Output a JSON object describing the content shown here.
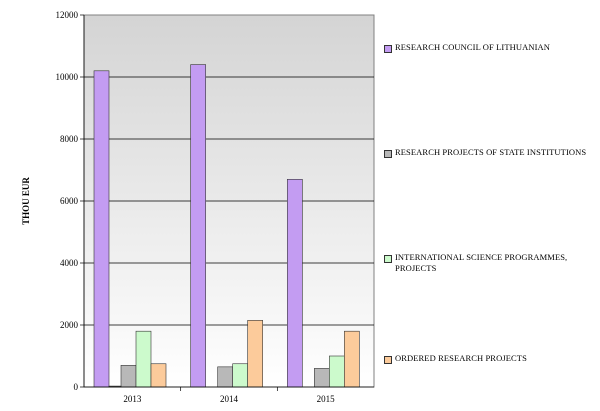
{
  "chart_data": {
    "type": "bar",
    "ylabel": "THOU    EUR",
    "ylim": [
      0,
      12000
    ],
    "yticks": [
      "0",
      "2000",
      "4000",
      "6000",
      "8000",
      "10000",
      "12000"
    ],
    "ytick_values": [
      0,
      2000,
      4000,
      6000,
      8000,
      10000,
      12000
    ],
    "categories": [
      "2013",
      "2014",
      "2015"
    ],
    "grid": true,
    "legend_position": "right",
    "series": [
      {
        "name": "RESEARCH COUNCIL OF LITHUANIAN",
        "color": "#c39cf2",
        "values": [
          10200,
          10400,
          6700
        ]
      },
      {
        "name": "RESEARCH PROJECTS OF STATE INSTITUTIONS",
        "color": "#b8b8b8",
        "values": [
          700,
          650,
          600
        ]
      },
      {
        "name": "INTERNATIONAL SCIENCE PROGRAMMES, PROJECTS",
        "color": "#ccfacc",
        "values": [
          1800,
          750,
          1000
        ]
      },
      {
        "name": "ORDERED RESEARCH PROJECTS",
        "color": "#fccb9b",
        "values": [
          750,
          2150,
          1800
        ]
      }
    ],
    "extra_bar": {
      "category": "2013",
      "value": 30,
      "color": "#555555"
    }
  }
}
